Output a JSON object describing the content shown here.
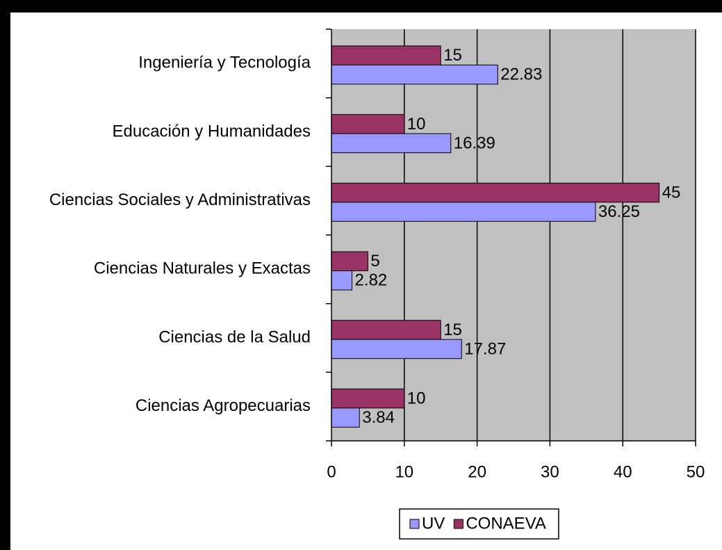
{
  "chart_data": {
    "type": "bar",
    "orientation": "horizontal",
    "categories": [
      "Ingeniería y Tecnología",
      "Educación y Humanidades",
      "Ciencias Sociales y Administrativas",
      "Ciencias Naturales y Exactas",
      "Ciencias de la Salud",
      "Ciencias Agropecuarias"
    ],
    "series": [
      {
        "name": "UV",
        "color": "#9999ff",
        "values": [
          22.83,
          16.39,
          36.25,
          2.82,
          17.87,
          3.84
        ]
      },
      {
        "name": "CONAEVA",
        "color": "#993366",
        "values": [
          15,
          10,
          45,
          5,
          15,
          10
        ]
      }
    ],
    "xlim": [
      0,
      50
    ],
    "xticks": [
      0,
      10,
      20,
      30,
      40,
      50
    ],
    "grid": true,
    "legend": "bottom"
  }
}
